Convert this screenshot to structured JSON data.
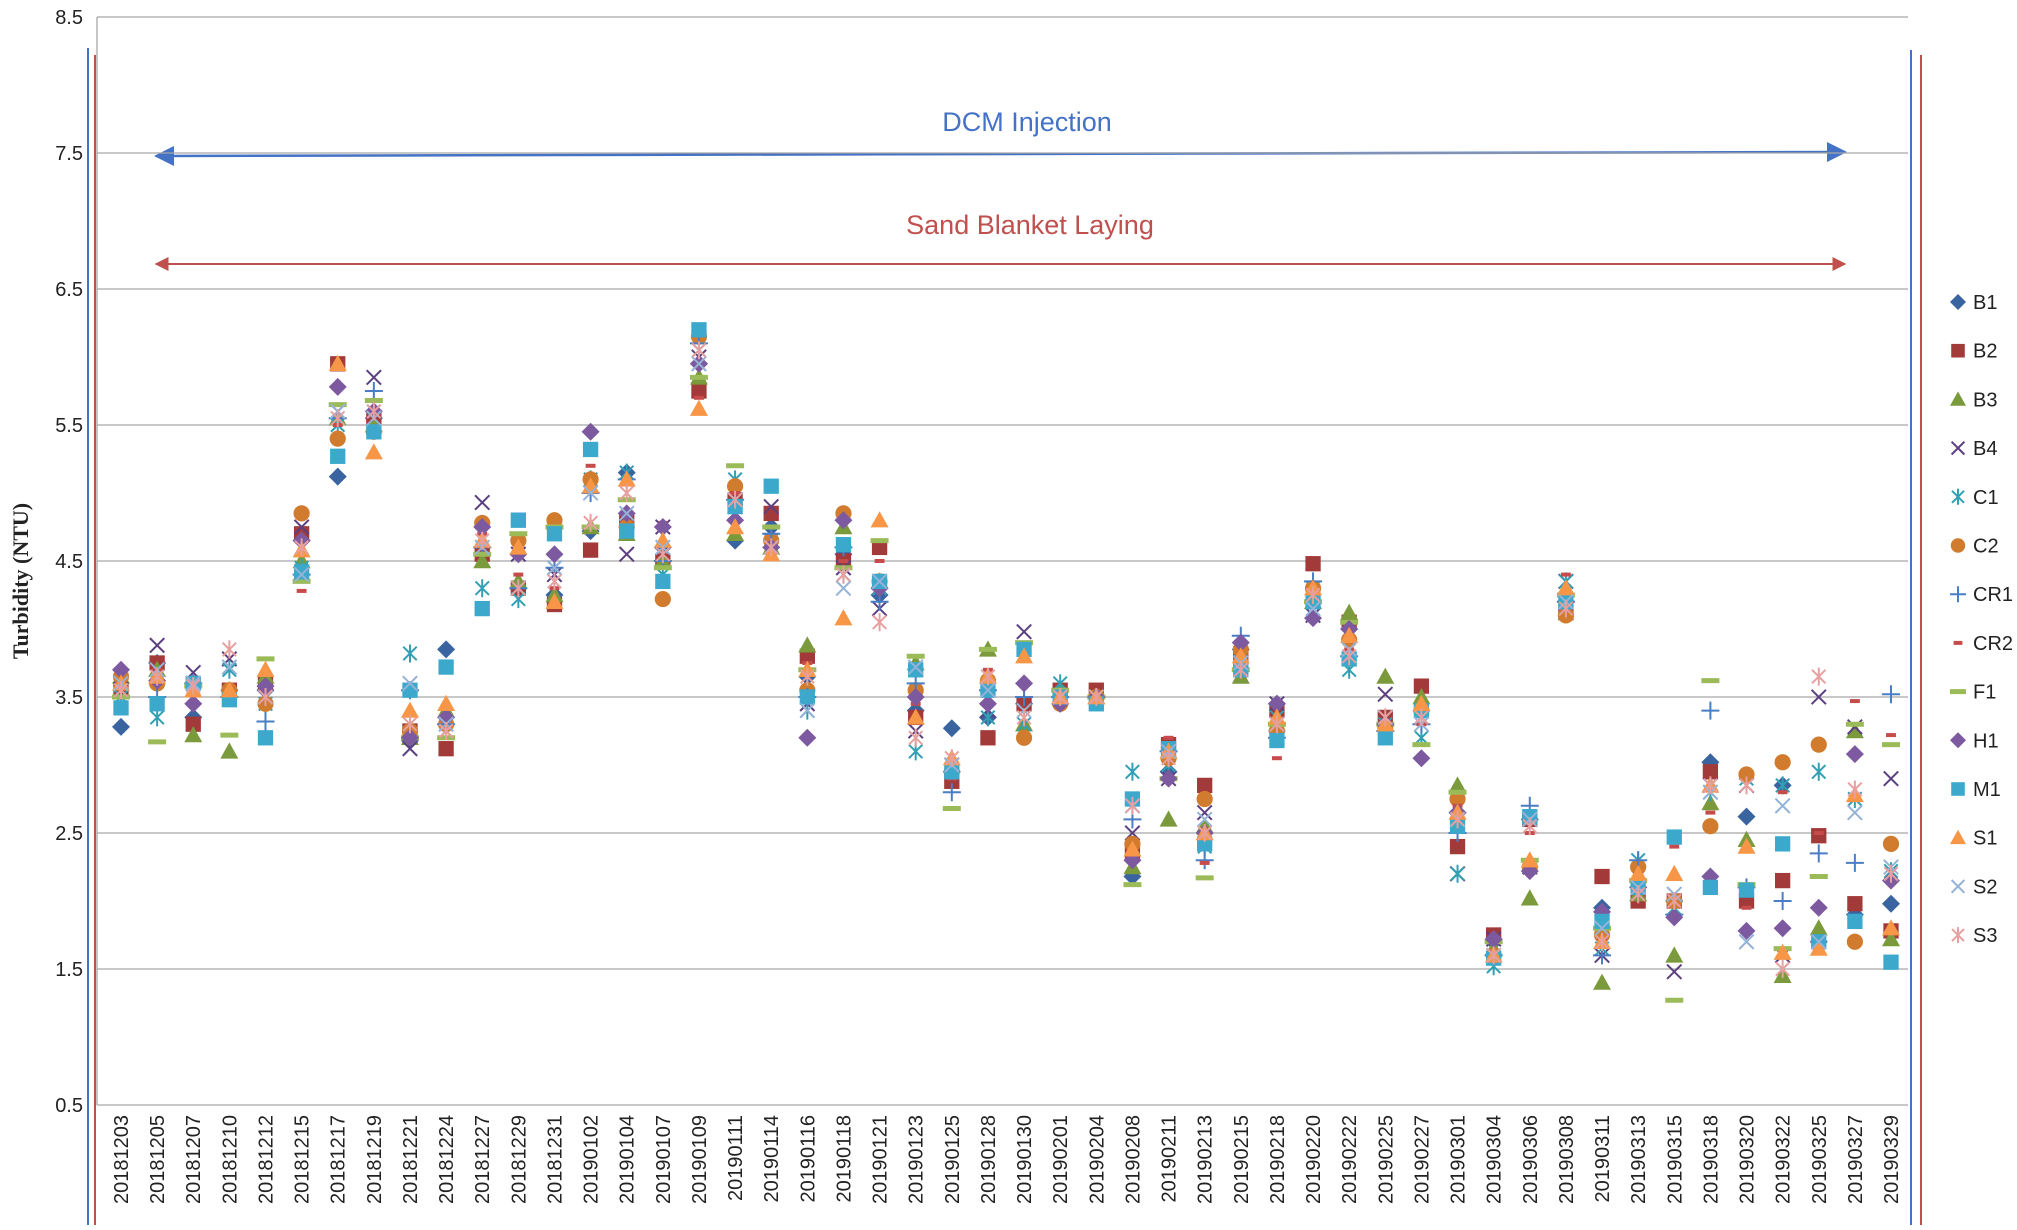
{
  "chart_data": {
    "type": "scatter",
    "y_label": "Turbidity (NTU)",
    "annotations": [
      "DCM Injection",
      "Sand Blanket Laying"
    ],
    "categories": [
      "20181203",
      "20181205",
      "20181207",
      "20181210",
      "20181212",
      "20181215",
      "20181217",
      "20181219",
      "20181221",
      "20181224",
      "20181227",
      "20181229",
      "20181231",
      "20190102",
      "20190104",
      "20190107",
      "20190109",
      "20190111",
      "20190114",
      "20190116",
      "20190118",
      "20190121",
      "20190123",
      "20190125",
      "20190128",
      "20190130",
      "20190201",
      "20190204",
      "20190208",
      "20190211",
      "20190213",
      "20190215",
      "20190218",
      "20190220",
      "20190222",
      "20190225",
      "20190227",
      "20190301",
      "20190304",
      "20190306",
      "20190308",
      "20190311",
      "20190313",
      "20190315",
      "20190318",
      "20190320",
      "20190322",
      "20190325",
      "20190327",
      "20190329"
    ],
    "ylim": [
      0.5,
      8.5
    ],
    "yticks": [
      0.5,
      1.5,
      2.5,
      3.5,
      4.5,
      5.5,
      6.5,
      7.5,
      8.5
    ],
    "grid": true,
    "legend": "right",
    "series": [
      {
        "name": "B1",
        "color": "#3a64a0",
        "marker": "diamond",
        "values": [
          3.28,
          3.75,
          3.35,
          3.55,
          3.55,
          4.65,
          5.12,
          5.55,
          3.18,
          3.85,
          4.6,
          4.3,
          4.25,
          4.72,
          5.15,
          4.6,
          5.95,
          4.65,
          4.75,
          3.65,
          4.55,
          4.25,
          3.4,
          3.27,
          3.35,
          3.45,
          3.45,
          3.5,
          2.18,
          2.95,
          2.5,
          3.85,
          3.45,
          4.2,
          4.0,
          3.3,
          3.4,
          2.65,
          1.7,
          2.6,
          4.2,
          1.95,
          2.1,
          2.0,
          3.02,
          2.62,
          2.85,
          1.7,
          1.9,
          1.98
        ]
      },
      {
        "name": "B2",
        "color": "#a33a3a",
        "marker": "square",
        "values": [
          3.55,
          3.75,
          3.3,
          3.55,
          3.6,
          4.7,
          5.95,
          5.55,
          3.25,
          3.12,
          4.55,
          4.3,
          4.18,
          4.58,
          4.8,
          4.5,
          5.75,
          4.95,
          4.85,
          3.8,
          4.5,
          4.6,
          3.35,
          2.88,
          3.2,
          3.45,
          3.55,
          3.55,
          2.35,
          3.15,
          2.85,
          3.78,
          3.4,
          4.48,
          4.05,
          3.35,
          3.58,
          2.4,
          1.75,
          2.6,
          4.12,
          2.18,
          2.0,
          2.0,
          2.95,
          2.0,
          2.15,
          2.48,
          1.98,
          1.78
        ]
      },
      {
        "name": "B3",
        "color": "#7a9a3c",
        "marker": "triangle",
        "values": [
          3.65,
          3.7,
          3.22,
          3.1,
          3.65,
          4.5,
          5.55,
          5.5,
          3.2,
          3.4,
          4.5,
          4.35,
          4.25,
          4.75,
          4.7,
          4.5,
          5.85,
          4.7,
          4.6,
          3.88,
          4.75,
          4.35,
          3.75,
          3.0,
          3.85,
          3.3,
          3.55,
          3.5,
          2.25,
          2.6,
          2.55,
          3.65,
          3.3,
          4.2,
          4.12,
          3.65,
          3.5,
          2.85,
          1.65,
          2.02,
          4.3,
          1.4,
          2.05,
          1.6,
          2.72,
          2.45,
          1.45,
          1.8,
          3.25,
          1.72
        ]
      },
      {
        "name": "B4",
        "color": "#5b3f80",
        "marker": "x",
        "values": [
          3.65,
          3.88,
          3.68,
          3.78,
          3.5,
          4.75,
          5.6,
          5.85,
          3.12,
          3.25,
          4.93,
          4.55,
          4.4,
          5.05,
          4.55,
          4.75,
          6.0,
          4.9,
          4.9,
          3.45,
          4.45,
          4.15,
          3.25,
          3.0,
          3.4,
          3.98,
          3.5,
          3.5,
          2.5,
          2.9,
          2.65,
          3.85,
          3.45,
          4.1,
          3.95,
          3.52,
          3.35,
          2.2,
          1.72,
          2.25,
          4.35,
          1.6,
          2.2,
          1.48,
          2.85,
          2.85,
          1.6,
          3.5,
          3.28,
          2.9
        ]
      },
      {
        "name": "C1",
        "color": "#31a0b3",
        "marker": "asterisk",
        "values": [
          3.5,
          3.35,
          3.6,
          3.7,
          3.45,
          4.45,
          5.5,
          5.6,
          3.82,
          3.3,
          4.3,
          4.22,
          4.45,
          5.1,
          5.15,
          4.4,
          6.05,
          5.1,
          4.65,
          3.4,
          4.4,
          4.3,
          3.1,
          3.0,
          3.35,
          3.3,
          3.6,
          3.5,
          2.95,
          3.0,
          2.4,
          3.85,
          3.35,
          4.3,
          3.7,
          3.3,
          3.2,
          2.2,
          1.52,
          2.6,
          4.35,
          1.65,
          2.3,
          1.95,
          2.8,
          2.9,
          2.85,
          2.95,
          2.75,
          2.22
        ]
      },
      {
        "name": "C2",
        "color": "#d07b2e",
        "marker": "circle",
        "values": [
          3.65,
          3.6,
          3.6,
          3.55,
          3.45,
          4.85,
          5.4,
          5.45,
          3.25,
          3.3,
          4.78,
          4.65,
          4.8,
          5.1,
          4.75,
          4.22,
          6.15,
          5.05,
          4.65,
          3.55,
          4.85,
          4.35,
          3.55,
          2.95,
          3.62,
          3.2,
          3.45,
          3.5,
          2.42,
          3.05,
          2.75,
          3.85,
          3.25,
          4.3,
          3.92,
          3.28,
          3.4,
          2.75,
          1.6,
          2.25,
          4.1,
          1.75,
          2.25,
          2.0,
          2.55,
          2.93,
          3.02,
          3.15,
          1.7,
          2.42
        ]
      },
      {
        "name": "CR1",
        "color": "#4a7ec4",
        "marker": "plus",
        "values": [
          3.5,
          3.5,
          3.6,
          3.5,
          3.32,
          4.4,
          5.55,
          5.75,
          3.55,
          3.3,
          4.6,
          4.3,
          4.45,
          5.0,
          5.1,
          4.5,
          6.1,
          4.95,
          4.7,
          3.5,
          4.6,
          4.2,
          3.6,
          2.8,
          3.55,
          3.5,
          3.5,
          3.5,
          2.6,
          3.1,
          2.3,
          3.95,
          3.2,
          4.35,
          3.8,
          3.25,
          3.3,
          2.5,
          1.6,
          2.7,
          4.2,
          1.6,
          2.3,
          1.9,
          3.4,
          2.1,
          2.0,
          2.35,
          2.28,
          3.52
        ]
      },
      {
        "name": "CR2",
        "color": "#c84b4b",
        "marker": "dash",
        "values": [
          3.6,
          3.7,
          3.62,
          3.5,
          3.55,
          4.28,
          5.5,
          5.6,
          3.2,
          3.35,
          4.7,
          4.4,
          4.3,
          5.2,
          4.85,
          4.78,
          5.7,
          5.0,
          4.6,
          3.75,
          4.5,
          4.5,
          3.45,
          2.9,
          3.7,
          3.8,
          3.55,
          3.5,
          2.3,
          3.2,
          2.28,
          3.75,
          3.05,
          4.2,
          3.85,
          3.2,
          3.3,
          2.7,
          1.7,
          2.5,
          4.4,
          1.72,
          2.2,
          2.4,
          2.65,
          1.95,
          2.8,
          2.5,
          3.47,
          3.22
        ]
      },
      {
        "name": "F1",
        "color": "#9bbb59",
        "marker": "longdash",
        "values": [
          3.5,
          3.17,
          3.58,
          3.22,
          3.78,
          4.35,
          5.65,
          5.68,
          3.2,
          3.2,
          4.55,
          4.7,
          4.75,
          4.75,
          4.95,
          4.45,
          5.85,
          5.2,
          4.75,
          3.7,
          4.45,
          4.65,
          3.8,
          2.68,
          3.85,
          3.9,
          3.55,
          3.5,
          2.12,
          2.9,
          2.17,
          3.7,
          3.3,
          4.2,
          4.05,
          3.3,
          3.15,
          2.8,
          1.7,
          2.3,
          4.25,
          1.8,
          2.15,
          1.27,
          3.62,
          2.12,
          1.65,
          2.18,
          3.3,
          3.15
        ]
      },
      {
        "name": "H1",
        "color": "#7d5aa0",
        "marker": "diamond",
        "values": [
          3.7,
          3.62,
          3.45,
          3.5,
          3.58,
          4.65,
          5.78,
          5.6,
          3.2,
          3.35,
          4.75,
          4.55,
          4.55,
          5.45,
          4.85,
          4.75,
          5.95,
          4.8,
          4.6,
          3.2,
          4.8,
          4.3,
          3.5,
          2.95,
          3.45,
          3.6,
          3.45,
          3.5,
          2.3,
          2.9,
          2.5,
          3.9,
          3.45,
          4.08,
          4.0,
          3.3,
          3.05,
          2.65,
          1.72,
          2.22,
          4.2,
          1.92,
          2.1,
          1.88,
          2.18,
          1.78,
          1.8,
          1.95,
          3.08,
          2.15
        ]
      },
      {
        "name": "M1",
        "color": "#3ba8cc",
        "marker": "square",
        "values": [
          3.42,
          3.45,
          3.6,
          3.48,
          3.2,
          4.42,
          5.27,
          5.45,
          3.55,
          3.72,
          4.15,
          4.8,
          4.7,
          5.32,
          4.72,
          4.35,
          6.2,
          4.9,
          5.05,
          3.5,
          4.62,
          4.35,
          3.7,
          2.95,
          3.55,
          3.85,
          3.5,
          3.45,
          2.75,
          3.12,
          2.42,
          3.7,
          3.18,
          4.2,
          3.78,
          3.2,
          3.4,
          2.55,
          1.58,
          2.62,
          4.2,
          1.85,
          2.1,
          2.47,
          2.1,
          2.08,
          2.42,
          1.7,
          1.85,
          1.55
        ]
      },
      {
        "name": "S1",
        "color": "#f79646",
        "marker": "triangle",
        "values": [
          3.6,
          3.65,
          3.55,
          3.55,
          3.7,
          4.58,
          5.95,
          5.3,
          3.4,
          3.45,
          4.65,
          4.6,
          4.2,
          5.05,
          5.1,
          4.65,
          5.62,
          4.75,
          4.55,
          3.7,
          4.08,
          4.8,
          3.35,
          3.05,
          3.65,
          3.8,
          3.5,
          3.5,
          2.38,
          3.1,
          2.5,
          3.8,
          3.35,
          4.3,
          3.95,
          3.3,
          3.45,
          2.65,
          1.6,
          2.3,
          4.3,
          1.7,
          2.2,
          2.2,
          2.85,
          2.4,
          1.62,
          1.65,
          2.78,
          1.8
        ]
      },
      {
        "name": "S2",
        "color": "#95b3d7",
        "marker": "x",
        "values": [
          3.6,
          3.7,
          3.6,
          3.72,
          3.5,
          4.4,
          5.6,
          5.55,
          3.6,
          3.3,
          4.6,
          4.3,
          4.45,
          5.0,
          4.85,
          4.6,
          5.95,
          4.95,
          4.6,
          3.4,
          4.3,
          4.35,
          3.72,
          3.0,
          3.55,
          3.4,
          3.5,
          3.5,
          2.7,
          3.1,
          2.6,
          3.75,
          3.3,
          4.15,
          3.85,
          3.35,
          3.3,
          2.6,
          1.6,
          2.6,
          4.2,
          1.8,
          2.1,
          2.05,
          2.8,
          1.7,
          2.7,
          1.7,
          2.65,
          2.25
        ]
      },
      {
        "name": "S3",
        "color": "#e6a0a0",
        "marker": "asterisk",
        "values": [
          3.55,
          3.65,
          3.58,
          3.85,
          3.5,
          4.6,
          5.55,
          5.6,
          3.3,
          3.25,
          4.65,
          4.3,
          4.35,
          4.78,
          5.0,
          4.55,
          6.05,
          4.95,
          4.6,
          3.65,
          4.4,
          4.05,
          3.2,
          3.05,
          3.65,
          3.35,
          3.5,
          3.5,
          2.7,
          3.05,
          2.5,
          3.7,
          3.3,
          4.25,
          3.8,
          3.35,
          3.35,
          2.6,
          1.6,
          2.55,
          4.15,
          1.7,
          2.05,
          2.0,
          2.85,
          2.85,
          1.5,
          3.65,
          2.82,
          2.2
        ]
      }
    ]
  }
}
